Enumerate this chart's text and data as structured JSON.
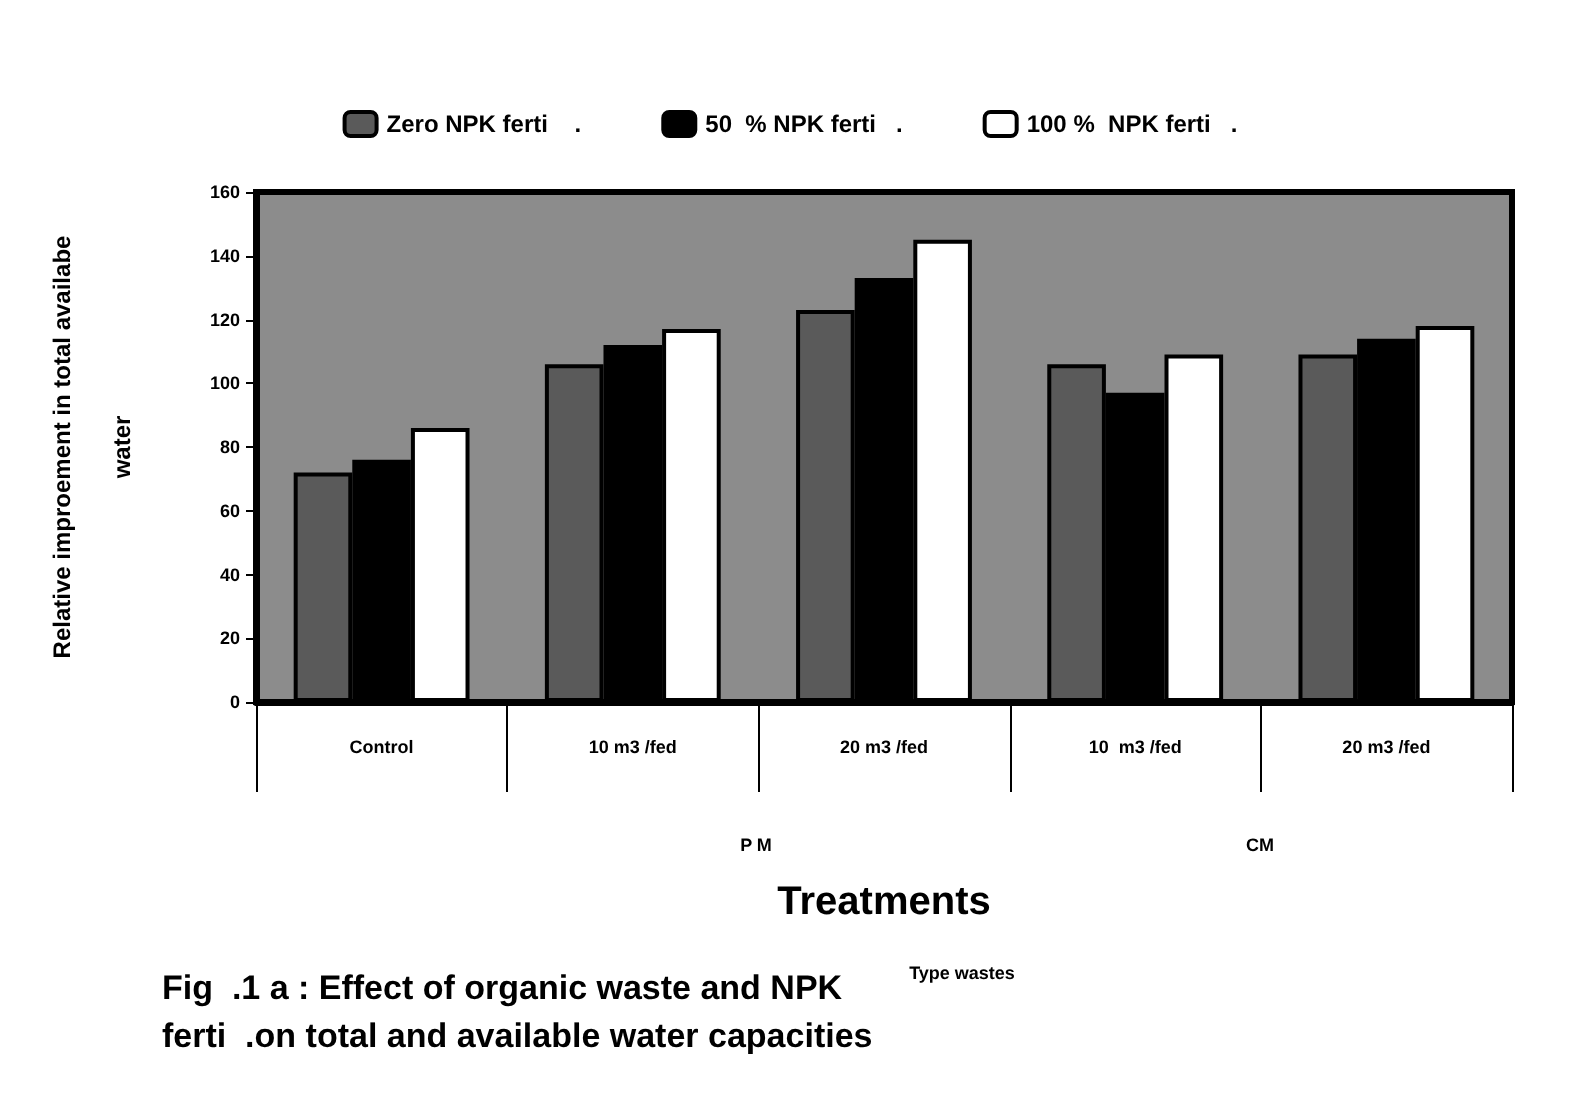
{
  "chart_data": {
    "type": "bar",
    "title": "Fig  .1 a : Effect of organic waste and NPK\nferti  .on total and available water capacities",
    "xlabel": "Treatments",
    "ylabel": "Relative improement in total availabe\nwater",
    "categories": [
      "Control",
      "10 m3 /fed",
      "20 m3 /fed",
      "10  m3 /fed",
      "20 m3 /fed"
    ],
    "series": [
      {
        "name": "Zero NPK ferti    .",
        "color": "#5a5a5a",
        "values": [
          72,
          106,
          123,
          106,
          109
        ]
      },
      {
        "name": "50  % NPK ferti   .",
        "color": "#000000",
        "values": [
          76,
          112,
          133,
          97,
          114
        ]
      },
      {
        "name": "100 %  NPK ferti   .",
        "color": "#ffffff",
        "values": [
          86,
          117,
          145,
          109,
          118
        ]
      }
    ],
    "annotations": [
      "P M",
      "CM",
      "Type wastes"
    ],
    "ylim": [
      0,
      160
    ],
    "yticks": [
      0,
      20,
      40,
      60,
      80,
      100,
      120,
      140,
      160
    ],
    "grid": false,
    "legend": "top"
  }
}
